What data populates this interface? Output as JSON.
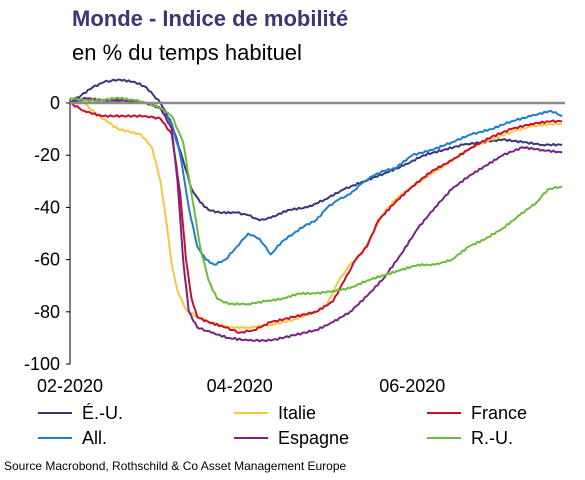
{
  "title": "Monde - Indice de mobilité",
  "subtitle": "en % du temps habituel",
  "source": "Source Macrobond, Rothschild & Co Asset Management Europe",
  "chart_data": {
    "type": "line",
    "title": "Monde - Indice de mobilité",
    "subtitle": "en % du temps habituel",
    "xlabel": "",
    "ylabel": "",
    "x_range": [
      "2020-02-01",
      "2020-07-25"
    ],
    "x_ticks": [
      {
        "date": "2020-02-01",
        "label": "02-2020"
      },
      {
        "date": "2020-04-01",
        "label": "04-2020"
      },
      {
        "date": "2020-06-01",
        "label": "06-2020"
      }
    ],
    "ylim": [
      -100,
      0
    ],
    "y_ticks": [
      0,
      -20,
      -40,
      -60,
      -80,
      -100
    ],
    "grid": false,
    "legend_position": "bottom",
    "series": [
      {
        "name": "É.-U.",
        "color": "#3b3675",
        "points": [
          [
            "2020-02-01",
            0
          ],
          [
            "2020-02-05",
            3
          ],
          [
            "2020-02-09",
            6
          ],
          [
            "2020-02-13",
            8
          ],
          [
            "2020-02-18",
            9
          ],
          [
            "2020-02-24",
            8
          ],
          [
            "2020-02-28",
            6
          ],
          [
            "2020-03-04",
            0
          ],
          [
            "2020-03-08",
            -8
          ],
          [
            "2020-03-12",
            -22
          ],
          [
            "2020-03-15",
            -33
          ],
          [
            "2020-03-18",
            -38
          ],
          [
            "2020-03-21",
            -41
          ],
          [
            "2020-03-25",
            -42
          ],
          [
            "2020-03-31",
            -42
          ],
          [
            "2020-04-04",
            -43
          ],
          [
            "2020-04-08",
            -45
          ],
          [
            "2020-04-12",
            -44
          ],
          [
            "2020-04-18",
            -41
          ],
          [
            "2020-04-25",
            -40
          ],
          [
            "2020-05-01",
            -37
          ],
          [
            "2020-05-08",
            -33
          ],
          [
            "2020-05-15",
            -30
          ],
          [
            "2020-05-22",
            -27
          ],
          [
            "2020-05-29",
            -24
          ],
          [
            "2020-06-05",
            -20
          ],
          [
            "2020-06-12",
            -18
          ],
          [
            "2020-06-19",
            -16
          ],
          [
            "2020-06-26",
            -15
          ],
          [
            "2020-07-03",
            -14
          ],
          [
            "2020-07-10",
            -15
          ],
          [
            "2020-07-17",
            -16
          ],
          [
            "2020-07-24",
            -16
          ]
        ]
      },
      {
        "name": "Italie",
        "color": "#f5c842",
        "points": [
          [
            "2020-02-01",
            0
          ],
          [
            "2020-02-06",
            0
          ],
          [
            "2020-02-10",
            -4
          ],
          [
            "2020-02-14",
            -7
          ],
          [
            "2020-02-18",
            -10
          ],
          [
            "2020-02-22",
            -11
          ],
          [
            "2020-02-26",
            -12
          ],
          [
            "2020-03-01",
            -17
          ],
          [
            "2020-03-04",
            -30
          ],
          [
            "2020-03-06",
            -45
          ],
          [
            "2020-03-08",
            -62
          ],
          [
            "2020-03-10",
            -72
          ],
          [
            "2020-03-13",
            -79
          ],
          [
            "2020-03-17",
            -82
          ],
          [
            "2020-03-22",
            -84
          ],
          [
            "2020-03-28",
            -86
          ],
          [
            "2020-04-04",
            -86
          ],
          [
            "2020-04-12",
            -85
          ],
          [
            "2020-04-20",
            -83
          ],
          [
            "2020-04-28",
            -80
          ],
          [
            "2020-05-02",
            -77
          ],
          [
            "2020-05-06",
            -68
          ],
          [
            "2020-05-10",
            -62
          ],
          [
            "2020-05-14",
            -58
          ],
          [
            "2020-05-18",
            -50
          ],
          [
            "2020-05-22",
            -42
          ],
          [
            "2020-05-26",
            -37
          ],
          [
            "2020-06-01",
            -32
          ],
          [
            "2020-06-08",
            -27
          ],
          [
            "2020-06-15",
            -22
          ],
          [
            "2020-06-22",
            -17
          ],
          [
            "2020-06-29",
            -14
          ],
          [
            "2020-07-06",
            -11
          ],
          [
            "2020-07-13",
            -9
          ],
          [
            "2020-07-20",
            -8
          ],
          [
            "2020-07-24",
            -8
          ]
        ]
      },
      {
        "name": "France",
        "color": "#c8102e",
        "points": [
          [
            "2020-02-01",
            0
          ],
          [
            "2020-02-06",
            -3
          ],
          [
            "2020-02-12",
            -5
          ],
          [
            "2020-02-20",
            -5
          ],
          [
            "2020-02-28",
            -5
          ],
          [
            "2020-03-04",
            -6
          ],
          [
            "2020-03-08",
            -12
          ],
          [
            "2020-03-11",
            -35
          ],
          [
            "2020-03-13",
            -60
          ],
          [
            "2020-03-15",
            -75
          ],
          [
            "2020-03-17",
            -82
          ],
          [
            "2020-03-21",
            -84
          ],
          [
            "2020-03-27",
            -86
          ],
          [
            "2020-04-01",
            -88
          ],
          [
            "2020-04-06",
            -87
          ],
          [
            "2020-04-12",
            -84
          ],
          [
            "2020-04-20",
            -82
          ],
          [
            "2020-04-28",
            -80
          ],
          [
            "2020-05-04",
            -76
          ],
          [
            "2020-05-08",
            -68
          ],
          [
            "2020-05-12",
            -60
          ],
          [
            "2020-05-16",
            -55
          ],
          [
            "2020-05-20",
            -45
          ],
          [
            "2020-05-26",
            -38
          ],
          [
            "2020-06-01",
            -32
          ],
          [
            "2020-06-08",
            -26
          ],
          [
            "2020-06-15",
            -22
          ],
          [
            "2020-06-22",
            -17
          ],
          [
            "2020-06-29",
            -13
          ],
          [
            "2020-07-06",
            -10
          ],
          [
            "2020-07-13",
            -8
          ],
          [
            "2020-07-20",
            -7
          ],
          [
            "2020-07-24",
            -7
          ]
        ]
      },
      {
        "name": "All.",
        "color": "#1f7ec8",
        "points": [
          [
            "2020-02-01",
            0
          ],
          [
            "2020-02-06",
            1
          ],
          [
            "2020-02-12",
            1
          ],
          [
            "2020-02-20",
            1
          ],
          [
            "2020-02-28",
            0
          ],
          [
            "2020-03-04",
            -2
          ],
          [
            "2020-03-08",
            -8
          ],
          [
            "2020-03-11",
            -20
          ],
          [
            "2020-03-14",
            -40
          ],
          [
            "2020-03-17",
            -55
          ],
          [
            "2020-03-20",
            -60
          ],
          [
            "2020-03-23",
            -62
          ],
          [
            "2020-03-27",
            -60
          ],
          [
            "2020-03-31",
            -55
          ],
          [
            "2020-04-04",
            -50
          ],
          [
            "2020-04-08",
            -52
          ],
          [
            "2020-04-12",
            -58
          ],
          [
            "2020-04-16",
            -53
          ],
          [
            "2020-04-20",
            -50
          ],
          [
            "2020-04-24",
            -47
          ],
          [
            "2020-04-28",
            -45
          ],
          [
            "2020-05-02",
            -40
          ],
          [
            "2020-05-06",
            -37
          ],
          [
            "2020-05-10",
            -35
          ],
          [
            "2020-05-14",
            -31
          ],
          [
            "2020-05-18",
            -28
          ],
          [
            "2020-05-22",
            -26
          ],
          [
            "2020-05-26",
            -25
          ],
          [
            "2020-06-01",
            -20
          ],
          [
            "2020-06-08",
            -18
          ],
          [
            "2020-06-15",
            -15
          ],
          [
            "2020-06-22",
            -12
          ],
          [
            "2020-06-29",
            -10
          ],
          [
            "2020-07-06",
            -7
          ],
          [
            "2020-07-13",
            -5
          ],
          [
            "2020-07-20",
            -3
          ],
          [
            "2020-07-24",
            -5
          ]
        ]
      },
      {
        "name": "Espagne",
        "color": "#7b2283",
        "points": [
          [
            "2020-02-01",
            0
          ],
          [
            "2020-02-06",
            2
          ],
          [
            "2020-02-12",
            1
          ],
          [
            "2020-02-20",
            1
          ],
          [
            "2020-02-28",
            0
          ],
          [
            "2020-03-04",
            -2
          ],
          [
            "2020-03-08",
            -10
          ],
          [
            "2020-03-10",
            -30
          ],
          [
            "2020-03-12",
            -60
          ],
          [
            "2020-03-14",
            -80
          ],
          [
            "2020-03-17",
            -86
          ],
          [
            "2020-03-22",
            -88
          ],
          [
            "2020-03-28",
            -90
          ],
          [
            "2020-04-04",
            -91
          ],
          [
            "2020-04-12",
            -91
          ],
          [
            "2020-04-20",
            -89
          ],
          [
            "2020-04-28",
            -87
          ],
          [
            "2020-05-04",
            -84
          ],
          [
            "2020-05-10",
            -80
          ],
          [
            "2020-05-16",
            -74
          ],
          [
            "2020-05-22",
            -67
          ],
          [
            "2020-05-28",
            -58
          ],
          [
            "2020-06-03",
            -48
          ],
          [
            "2020-06-09",
            -40
          ],
          [
            "2020-06-15",
            -33
          ],
          [
            "2020-06-21",
            -28
          ],
          [
            "2020-06-27",
            -24
          ],
          [
            "2020-07-03",
            -20
          ],
          [
            "2020-07-10",
            -17
          ],
          [
            "2020-07-17",
            -18
          ],
          [
            "2020-07-24",
            -19
          ]
        ]
      },
      {
        "name": "R.-U.",
        "color": "#6cbb3c",
        "points": [
          [
            "2020-02-01",
            2
          ],
          [
            "2020-02-06",
            1
          ],
          [
            "2020-02-12",
            1
          ],
          [
            "2020-02-18",
            2
          ],
          [
            "2020-02-24",
            1
          ],
          [
            "2020-02-28",
            0
          ],
          [
            "2020-03-04",
            -2
          ],
          [
            "2020-03-08",
            -5
          ],
          [
            "2020-03-12",
            -15
          ],
          [
            "2020-03-15",
            -35
          ],
          [
            "2020-03-18",
            -55
          ],
          [
            "2020-03-21",
            -68
          ],
          [
            "2020-03-24",
            -75
          ],
          [
            "2020-03-28",
            -77
          ],
          [
            "2020-04-04",
            -77
          ],
          [
            "2020-04-10",
            -76
          ],
          [
            "2020-04-16",
            -75
          ],
          [
            "2020-04-22",
            -73
          ],
          [
            "2020-04-28",
            -73
          ],
          [
            "2020-05-04",
            -72
          ],
          [
            "2020-05-10",
            -71
          ],
          [
            "2020-05-16",
            -68
          ],
          [
            "2020-05-22",
            -66
          ],
          [
            "2020-05-28",
            -64
          ],
          [
            "2020-06-03",
            -62
          ],
          [
            "2020-06-09",
            -62
          ],
          [
            "2020-06-15",
            -60
          ],
          [
            "2020-06-21",
            -55
          ],
          [
            "2020-06-27",
            -52
          ],
          [
            "2020-07-03",
            -48
          ],
          [
            "2020-07-09",
            -43
          ],
          [
            "2020-07-15",
            -38
          ],
          [
            "2020-07-19",
            -33
          ],
          [
            "2020-07-24",
            -32
          ]
        ]
      }
    ]
  }
}
